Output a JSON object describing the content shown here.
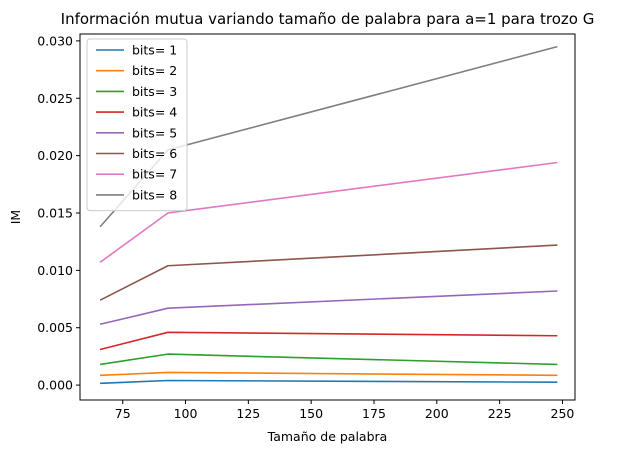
{
  "chart_data": {
    "type": "line",
    "title": "Información mutua variando tamaño de palabra para  a=1 para trozo G",
    "xlabel": "Tamaño de palabra",
    "ylabel": "IM",
    "xlim": [
      58,
      255
    ],
    "ylim": [
      -0.0013,
      0.0306
    ],
    "xticks": [
      75,
      100,
      125,
      150,
      175,
      200,
      225,
      250
    ],
    "yticks": [
      0.0,
      0.005,
      0.01,
      0.015,
      0.02,
      0.025,
      0.03
    ],
    "ytick_labels": [
      "0.000",
      "0.005",
      "0.010",
      "0.015",
      "0.020",
      "0.025",
      "0.030"
    ],
    "grid": false,
    "legend_position": "top-left",
    "x": [
      66,
      93,
      248
    ],
    "series": [
      {
        "name": "bits= 1",
        "color": "#1f77b4",
        "values": [
          0.00015,
          0.0004,
          0.00025
        ]
      },
      {
        "name": "bits= 2",
        "color": "#ff7f0e",
        "values": [
          0.00085,
          0.0011,
          0.00085
        ]
      },
      {
        "name": "bits= 3",
        "color": "#2ca02c",
        "values": [
          0.0018,
          0.0027,
          0.0018
        ]
      },
      {
        "name": "bits= 4",
        "color": "#d62728",
        "values": [
          0.0031,
          0.0046,
          0.0043
        ]
      },
      {
        "name": "bits= 5",
        "color": "#9467bd",
        "values": [
          0.0053,
          0.0067,
          0.0082
        ]
      },
      {
        "name": "bits= 6",
        "color": "#8c564b",
        "values": [
          0.0074,
          0.0104,
          0.0122
        ]
      },
      {
        "name": "bits= 7",
        "color": "#e377c2",
        "values": [
          0.0107,
          0.015,
          0.0194
        ]
      },
      {
        "name": "bits= 8",
        "color": "#7f7f7f",
        "values": [
          0.0138,
          0.0205,
          0.0295
        ]
      }
    ]
  }
}
